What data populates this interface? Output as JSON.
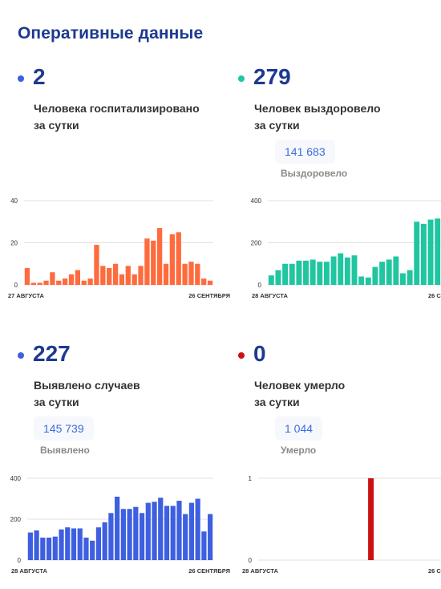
{
  "title": "Оперативные данные",
  "colors": {
    "hospital": "#ff6b3d",
    "recovered": "#1fc6a0",
    "cases": "#3d5fe0",
    "deaths": "#cc1111",
    "dark": "#1d3a8f"
  },
  "cards": [
    {
      "value": "2",
      "line1": "Человека госпитализировано",
      "line2": "за сутки",
      "total": "",
      "total_label": ""
    },
    {
      "value": "279",
      "line1": "Человек выздоровело",
      "line2": "за сутки",
      "total": "141 683",
      "total_label": "Выздоровело"
    },
    {
      "value": "227",
      "line1": "Выявлено случаев",
      "line2": "за сутки",
      "total": "145 739",
      "total_label": "Выявлено"
    },
    {
      "value": "0",
      "line1": "Человек умерло",
      "line2": "за сутки",
      "total": "1 044",
      "total_label": "Умерло"
    }
  ],
  "chart_data": [
    {
      "type": "bar",
      "ylim": [
        0,
        40
      ],
      "yticks": [
        "0",
        "20",
        "40"
      ],
      "x_start": "27 АВГУСТА",
      "x_end": "26 СЕНТЯБРЯ",
      "values": [
        8,
        1,
        1,
        2,
        6,
        2,
        3,
        5,
        7,
        2,
        3,
        19,
        9,
        8,
        10,
        5,
        9,
        5,
        9,
        22,
        21,
        27,
        10,
        24,
        25,
        10,
        11,
        10,
        3,
        2
      ]
    },
    {
      "type": "bar",
      "ylim": [
        0,
        400
      ],
      "yticks": [
        "0",
        "200",
        "400"
      ],
      "x_start": "28 АВГУСТА",
      "x_end": "26 С",
      "values": [
        45,
        70,
        100,
        100,
        115,
        115,
        120,
        110,
        110,
        135,
        150,
        130,
        140,
        40,
        35,
        85,
        110,
        120,
        135,
        55,
        70,
        300,
        290,
        310,
        315
      ]
    },
    {
      "type": "bar",
      "ylim": [
        0,
        400
      ],
      "yticks": [
        "0",
        "200",
        "400"
      ],
      "x_start": "28 АВГУСТА",
      "x_end": "26 СЕНТЯБРЯ",
      "values": [
        135,
        145,
        110,
        110,
        115,
        150,
        160,
        155,
        155,
        110,
        95,
        160,
        185,
        230,
        310,
        250,
        250,
        260,
        230,
        280,
        285,
        305,
        265,
        265,
        290,
        225,
        280,
        300,
        140,
        225
      ]
    },
    {
      "type": "bar",
      "ylim": [
        0,
        1
      ],
      "yticks": [
        "0",
        "1"
      ],
      "x_start": "28 АВГУСТА",
      "x_end": "26 С",
      "values": [
        0,
        0,
        0,
        0,
        0,
        0,
        0,
        0,
        0,
        0,
        0,
        0,
        0,
        0,
        0,
        0,
        0,
        0,
        1,
        0,
        0,
        0,
        0,
        0,
        0,
        0,
        0,
        0,
        0,
        0
      ]
    }
  ]
}
